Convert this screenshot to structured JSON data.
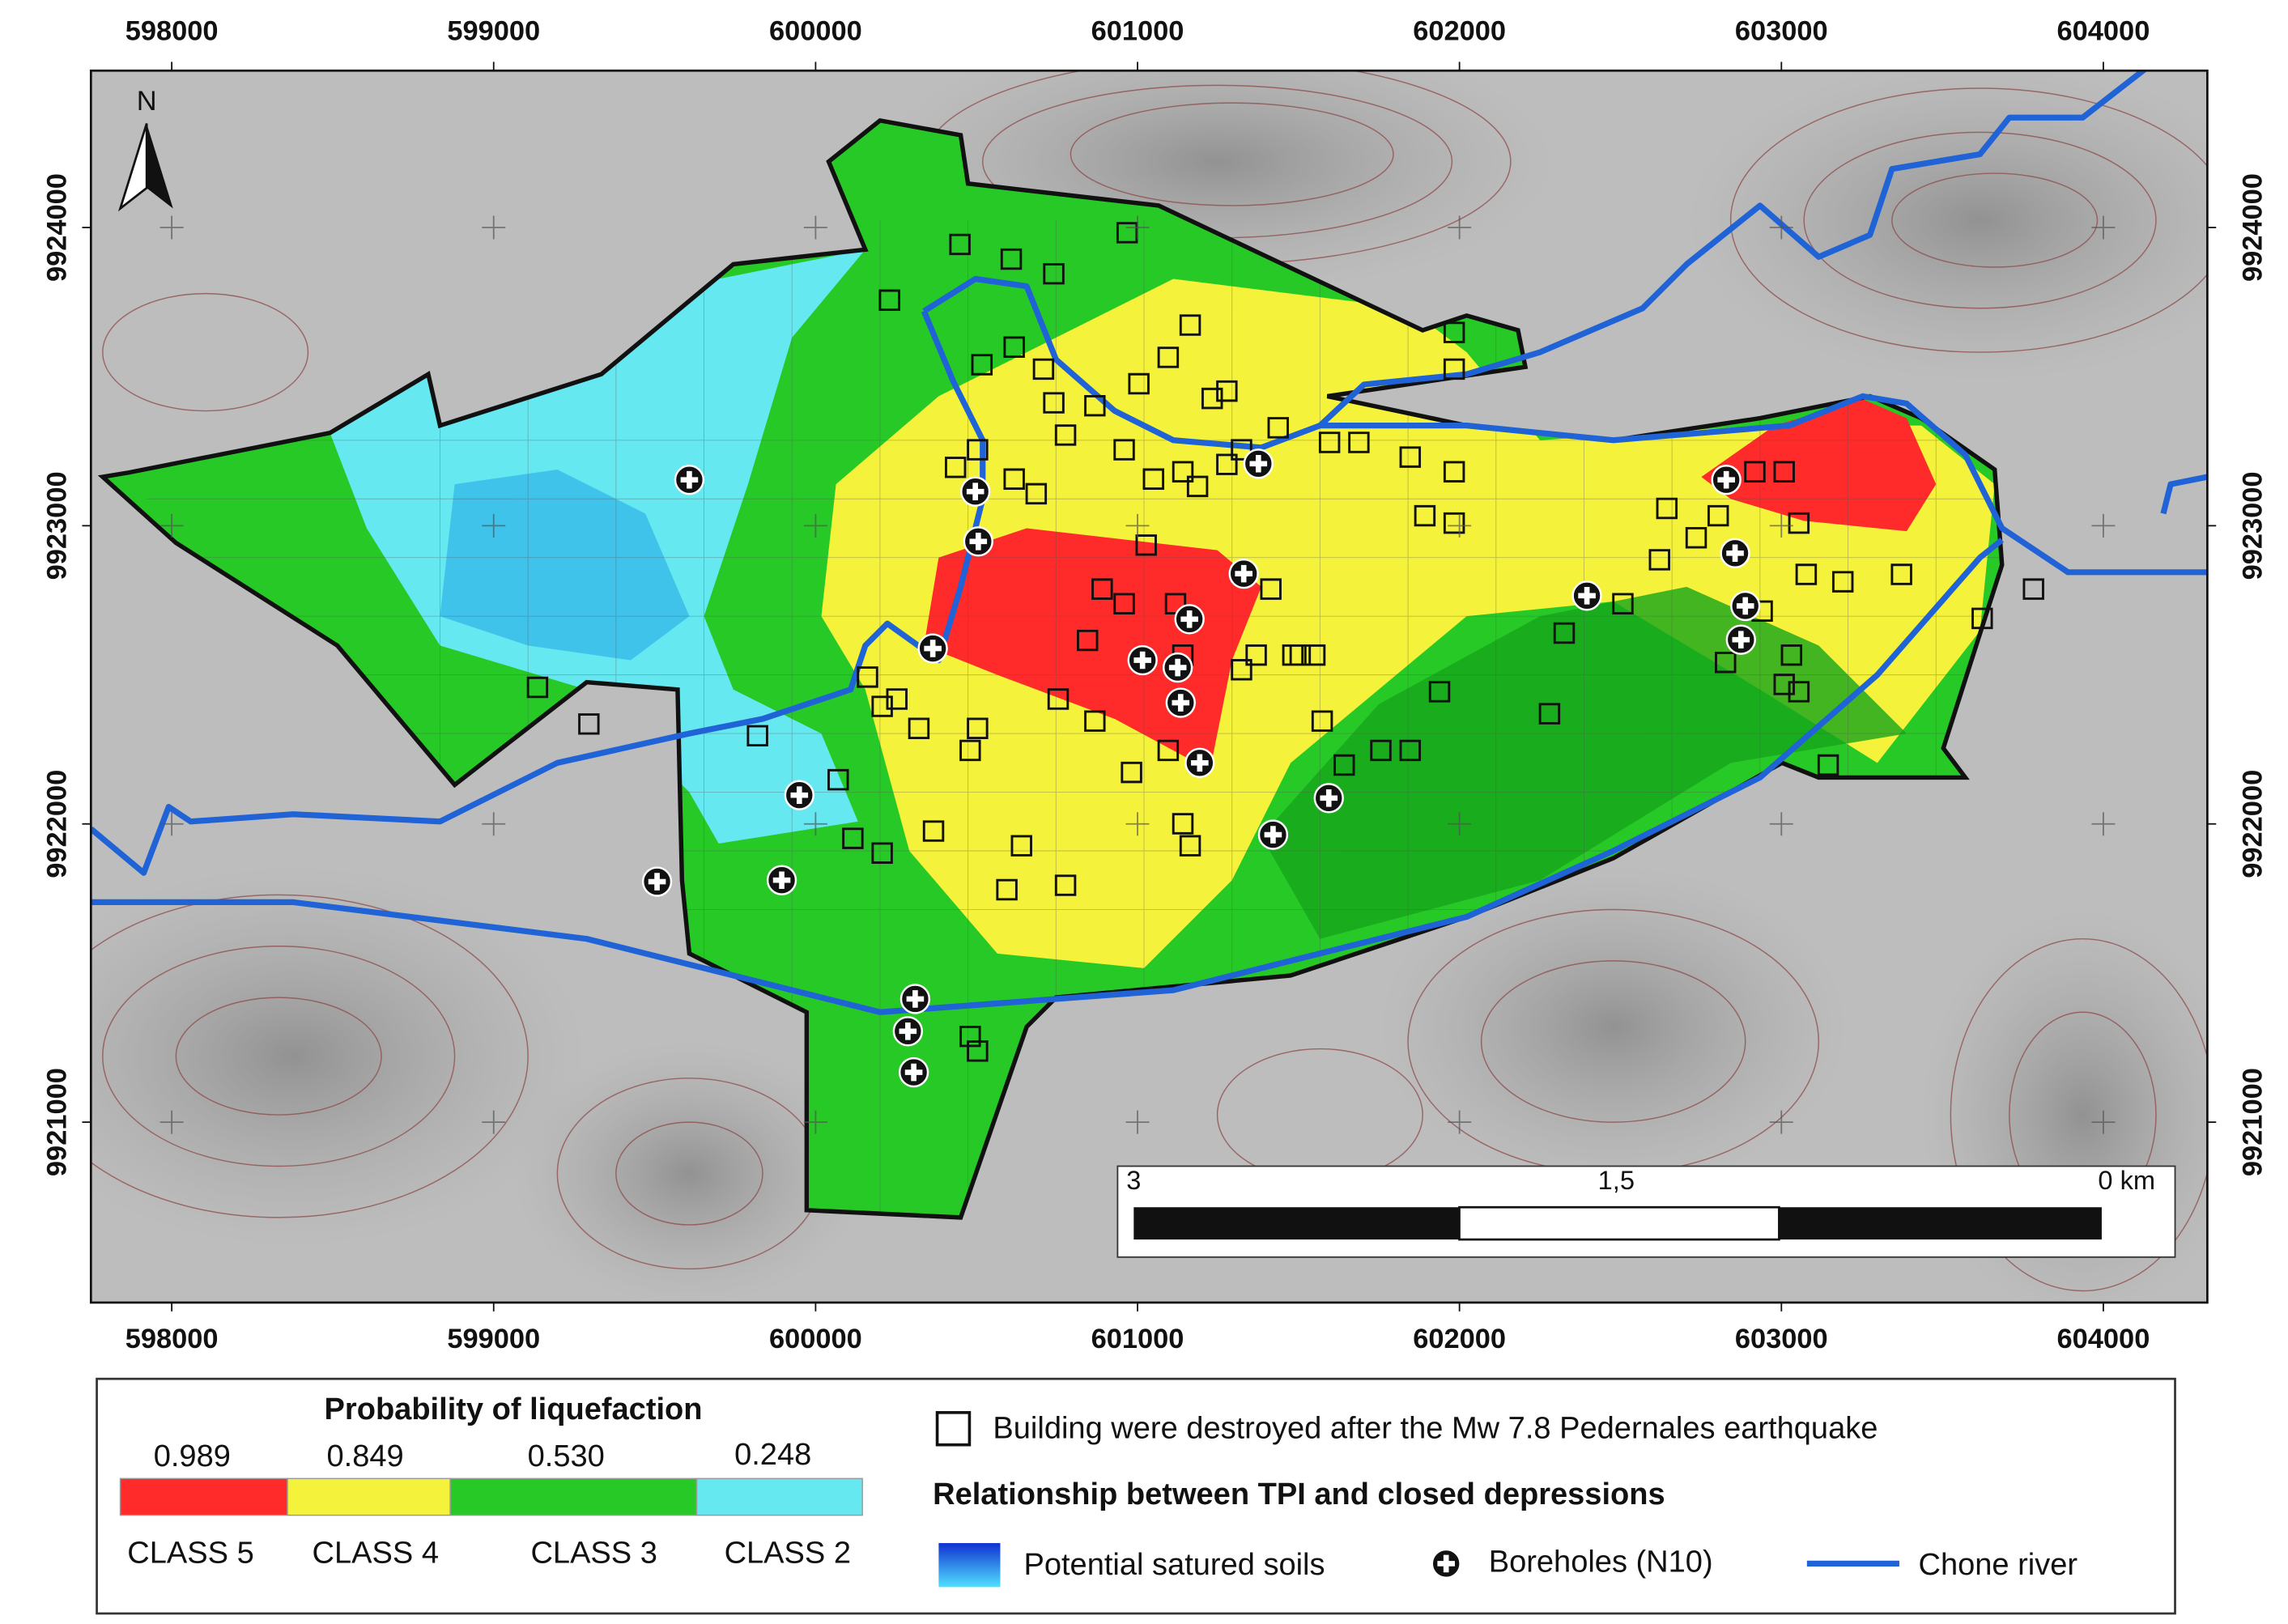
{
  "map": {
    "x_axis": {
      "xlim": [
        597749,
        604323
      ],
      "ticks": [
        598000,
        599000,
        600000,
        601000,
        602000,
        603000,
        604000
      ]
    },
    "y_axis": {
      "ylim": [
        9920395,
        9924526
      ],
      "ticks": [
        9921000,
        9922000,
        9923000,
        9924000
      ]
    },
    "north": "N",
    "scale_bar": {
      "left": "3",
      "middle": "1,5",
      "right": "0 km"
    }
  },
  "legend": {
    "title": "Probability of liquefaction",
    "thresholds": [
      "0.989",
      "0.849",
      "0.530",
      "0.248"
    ],
    "classes": [
      {
        "name": "CLASS 5",
        "color": "#ff2a2a"
      },
      {
        "name": "CLASS 4",
        "color": "#f4f23a"
      },
      {
        "name": "CLASS 3",
        "color": "#27c927"
      },
      {
        "name": "CLASS 2",
        "color": "#66e8f0"
      }
    ],
    "buildings": "Building were destroyed after the Mw 7.8 Pedernales earthquake",
    "relationship": "Relationship between TPI and closed depressions",
    "soils": "Potential satured soils",
    "boreholes": "Boreholes (N10)",
    "river": "Chone river"
  }
}
